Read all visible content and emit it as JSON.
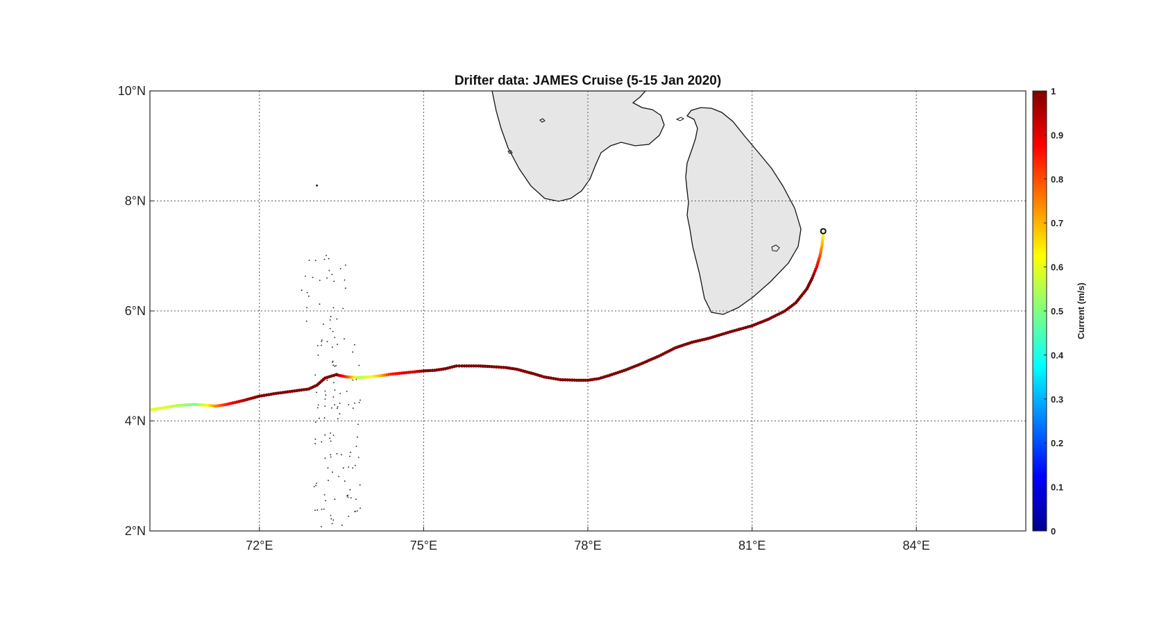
{
  "map": {
    "title": "Drifter data: JAMES Cruise (5-15 Jan 2020)",
    "extent": {
      "lon": [
        70.0,
        86.0
      ],
      "lat": [
        2.0,
        10.0
      ]
    },
    "grid_lines": true,
    "lon_ticks": [
      {
        "value": 72,
        "label": "72°E"
      },
      {
        "value": 75,
        "label": "75°E"
      },
      {
        "value": 78,
        "label": "78°E"
      },
      {
        "value": 81,
        "label": "81°E"
      },
      {
        "value": 84,
        "label": "84°E"
      }
    ],
    "lat_ticks": [
      {
        "value": 2,
        "label": "2°N"
      },
      {
        "value": 4,
        "label": "4°N"
      },
      {
        "value": 6,
        "label": "6°N"
      },
      {
        "value": 8,
        "label": "8°N"
      },
      {
        "value": 10,
        "label": "10°N"
      }
    ],
    "land_color": "#e6e6e6",
    "coast_color": "#111111"
  },
  "colorbar": {
    "label": "Current (m/s)",
    "range": [
      0,
      1
    ],
    "colormap": "jet",
    "placement": "right",
    "ticks": [
      {
        "value": 0,
        "label": "0"
      },
      {
        "value": 0.1,
        "label": "0.1"
      },
      {
        "value": 0.2,
        "label": "0.2"
      },
      {
        "value": 0.3,
        "label": "0.3"
      },
      {
        "value": 0.4,
        "label": "0.4"
      },
      {
        "value": 0.5,
        "label": "0.5"
      },
      {
        "value": 0.6,
        "label": "0.6"
      },
      {
        "value": 0.7,
        "label": "0.7"
      },
      {
        "value": 0.8,
        "label": "0.8"
      },
      {
        "value": 0.9,
        "label": "0.9"
      },
      {
        "value": 1,
        "label": "1"
      }
    ]
  },
  "drifter": {
    "start_marker": {
      "lon": 82.3,
      "lat": 7.45
    },
    "track": [
      [
        82.3,
        7.45,
        0.6
      ],
      [
        82.28,
        7.2,
        0.7
      ],
      [
        82.24,
        7.0,
        0.8
      ],
      [
        82.18,
        6.8,
        0.9
      ],
      [
        82.1,
        6.6,
        1.0
      ],
      [
        82.0,
        6.4,
        1.0
      ],
      [
        81.8,
        6.15,
        1.0
      ],
      [
        81.6,
        6.0,
        1.0
      ],
      [
        81.3,
        5.85,
        1.0
      ],
      [
        81.0,
        5.73,
        1.0
      ],
      [
        80.6,
        5.62,
        1.0
      ],
      [
        80.2,
        5.5,
        1.0
      ],
      [
        79.9,
        5.43,
        1.0
      ],
      [
        79.6,
        5.33,
        1.0
      ],
      [
        79.3,
        5.18,
        1.0
      ],
      [
        79.0,
        5.05,
        1.0
      ],
      [
        78.7,
        4.93,
        1.0
      ],
      [
        78.4,
        4.83,
        1.0
      ],
      [
        78.2,
        4.77,
        1.0
      ],
      [
        78.0,
        4.74,
        1.0
      ],
      [
        77.8,
        4.74,
        1.0
      ],
      [
        77.5,
        4.75,
        1.0
      ],
      [
        77.2,
        4.8,
        1.0
      ],
      [
        77.0,
        4.86,
        1.0
      ],
      [
        76.7,
        4.94,
        1.0
      ],
      [
        76.5,
        4.97,
        1.0
      ],
      [
        76.2,
        4.99,
        1.0
      ],
      [
        76.0,
        5.0,
        1.0
      ],
      [
        75.7,
        5.0,
        1.0
      ],
      [
        75.6,
        5.0,
        1.0
      ],
      [
        75.4,
        4.95,
        1.0
      ],
      [
        75.2,
        4.92,
        1.0
      ],
      [
        75.0,
        4.91,
        1.0
      ],
      [
        74.8,
        4.89,
        0.9
      ],
      [
        74.6,
        4.87,
        0.9
      ],
      [
        74.4,
        4.85,
        0.85
      ],
      [
        74.2,
        4.82,
        0.7
      ],
      [
        74.0,
        4.8,
        0.6
      ],
      [
        73.8,
        4.79,
        0.55
      ],
      [
        73.6,
        4.8,
        0.8
      ],
      [
        73.4,
        4.84,
        1.0
      ],
      [
        73.2,
        4.78,
        1.0
      ],
      [
        73.05,
        4.65,
        1.0
      ],
      [
        72.9,
        4.58,
        1.0
      ],
      [
        72.6,
        4.54,
        1.0
      ],
      [
        72.3,
        4.5,
        1.0
      ],
      [
        72.0,
        4.45,
        1.0
      ],
      [
        71.7,
        4.37,
        0.95
      ],
      [
        71.4,
        4.3,
        0.85
      ],
      [
        71.2,
        4.27,
        0.75
      ],
      [
        71.0,
        4.29,
        0.6
      ],
      [
        70.8,
        4.3,
        0.5
      ],
      [
        70.5,
        4.28,
        0.55
      ],
      [
        70.2,
        4.23,
        0.6
      ],
      [
        70.0,
        4.2,
        0.6
      ]
    ]
  }
}
